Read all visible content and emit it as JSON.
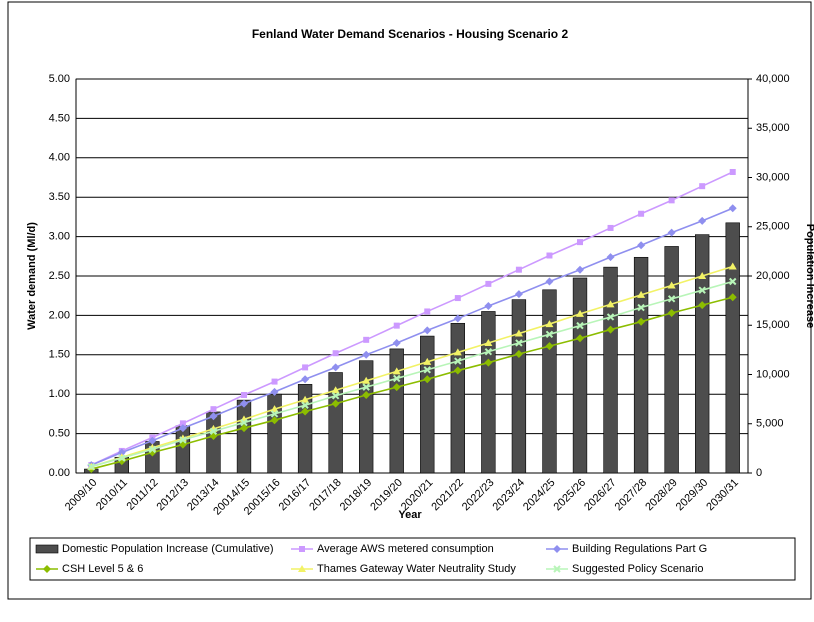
{
  "chart_data": {
    "type": "combo",
    "title": "Fenland Water Demand Scenarios - Housing Scenario 2",
    "x_label": "Year",
    "y_label": "Water demand (Ml/d)",
    "y2_label": "Population Increase",
    "categories": [
      "2009/10",
      "2010/11",
      "2011/12",
      "2012/13",
      "2013/14",
      "20014/15",
      "20015/16",
      "2016/17",
      "2017/18",
      "2018/19",
      "2019/20",
      "2020/21",
      "2021/22",
      "2022/23",
      "2023/24",
      "2024/25",
      "2025/26",
      "2026/27",
      "2027/28",
      "2028/29",
      "2029/30",
      "2030/31"
    ],
    "ylim": [
      0,
      5
    ],
    "yticks": [
      {
        "value": 0,
        "label": "0.00"
      },
      {
        "value": 0.5,
        "label": "0.50"
      },
      {
        "value": 1,
        "label": "1.00"
      },
      {
        "value": 1.5,
        "label": "1.50"
      },
      {
        "value": 2,
        "label": "2.00"
      },
      {
        "value": 2.5,
        "label": "2.50"
      },
      {
        "value": 3,
        "label": "3.00"
      },
      {
        "value": 3.5,
        "label": "3.50"
      },
      {
        "value": 4,
        "label": "4.00"
      },
      {
        "value": 4.5,
        "label": "4.50"
      },
      {
        "value": 5,
        "label": "5.00"
      }
    ],
    "y2lim": [
      0,
      40000
    ],
    "y2ticks": [
      0,
      {
        "value": 5000,
        "label": "5,000"
      },
      {
        "value": 10000,
        "label": "10,000"
      },
      {
        "value": 15000,
        "label": "15,000"
      },
      {
        "value": 20000,
        "label": "20,000"
      },
      {
        "value": 25000,
        "label": "25,000"
      },
      {
        "value": 30000,
        "label": "30,000"
      },
      {
        "value": 35000,
        "label": "35,000"
      },
      {
        "value": 40000,
        "label": "40,000"
      }
    ],
    "grid": true,
    "series": [
      {
        "name": "Domestic Population Increase (Cumulative)",
        "type": "bar",
        "axis": "y2",
        "color": "#4d4d4d",
        "values": [
          400,
          1600,
          3200,
          4800,
          6200,
          7400,
          8000,
          9000,
          10200,
          11400,
          12600,
          13900,
          15200,
          16400,
          17600,
          18600,
          19800,
          20900,
          21900,
          23000,
          24200,
          25400
        ]
      },
      {
        "name": "Average AWS metered consumption",
        "type": "line",
        "color": "#cc99ff",
        "marker": "square",
        "values": [
          0.1,
          0.28,
          0.45,
          0.63,
          0.81,
          0.99,
          1.16,
          1.34,
          1.52,
          1.69,
          1.87,
          2.05,
          2.22,
          2.4,
          2.58,
          2.76,
          2.93,
          3.11,
          3.29,
          3.46,
          3.64,
          3.82
        ]
      },
      {
        "name": "Building Regulations Part G",
        "type": "line",
        "color": "#8f8fef",
        "marker": "diamond",
        "values": [
          0.1,
          0.26,
          0.41,
          0.57,
          0.72,
          0.88,
          1.03,
          1.19,
          1.34,
          1.5,
          1.65,
          1.81,
          1.96,
          2.12,
          2.27,
          2.43,
          2.58,
          2.74,
          2.89,
          3.05,
          3.2,
          3.36
        ]
      },
      {
        "name": "CSH Level 5 & 6",
        "type": "line",
        "color": "#8cbd00",
        "marker": "diamond",
        "values": [
          0.05,
          0.15,
          0.26,
          0.36,
          0.47,
          0.57,
          0.67,
          0.78,
          0.88,
          0.99,
          1.09,
          1.19,
          1.3,
          1.4,
          1.51,
          1.61,
          1.71,
          1.82,
          1.92,
          2.03,
          2.13,
          2.23
        ]
      },
      {
        "name": "Thames Gateway Water Neutrality Study",
        "type": "line",
        "color": "#f2f266",
        "marker": "triangle",
        "values": [
          0.08,
          0.2,
          0.32,
          0.44,
          0.56,
          0.68,
          0.81,
          0.93,
          1.05,
          1.17,
          1.29,
          1.41,
          1.53,
          1.65,
          1.77,
          1.89,
          2.02,
          2.14,
          2.26,
          2.38,
          2.5,
          2.62
        ]
      },
      {
        "name": "Suggested Policy Scenario",
        "type": "line",
        "color": "#b8f5b8",
        "marker": "cross",
        "values": [
          0.08,
          0.19,
          0.3,
          0.42,
          0.53,
          0.64,
          0.75,
          0.86,
          0.98,
          1.09,
          1.2,
          1.31,
          1.42,
          1.54,
          1.65,
          1.76,
          1.87,
          1.98,
          2.1,
          2.21,
          2.32,
          2.43
        ]
      }
    ]
  }
}
